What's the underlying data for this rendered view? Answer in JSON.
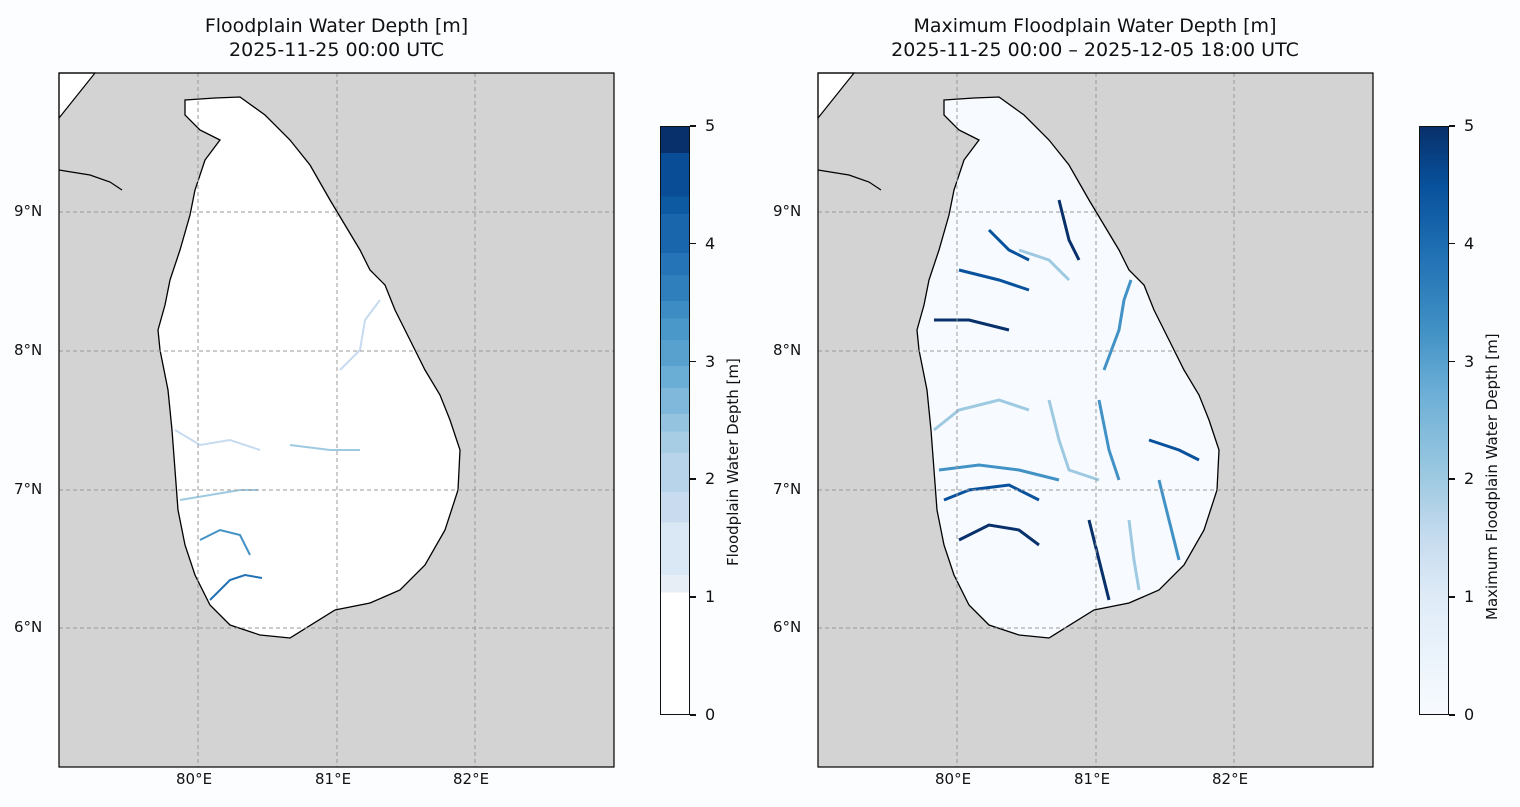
{
  "panels": [
    {
      "title_line1": "Floodplain Water Depth [m]",
      "title_line2": "2025-11-25 00:00 UTC",
      "colorbar_label": "Floodplain Water Depth [m]",
      "colorbar_ticks": [
        "0",
        "1",
        "2",
        "3",
        "4",
        "5"
      ],
      "x_ticks": [
        "80°E",
        "81°E",
        "82°E"
      ],
      "y_ticks": [
        "9°N",
        "8°N",
        "7°N",
        "6°N"
      ],
      "flood_intensity": "low"
    },
    {
      "title_line1": "Maximum Floodplain Water Depth [m]",
      "title_line2": "2025-11-25 00:00 – 2025-12-05 18:00 UTC",
      "colorbar_label": "Maximum Floodplain Water Depth [m]",
      "colorbar_ticks": [
        "0",
        "1",
        "2",
        "3",
        "4",
        "5"
      ],
      "x_ticks": [
        "80°E",
        "81°E",
        "82°E"
      ],
      "y_ticks": [
        "9°N",
        "8°N",
        "7°N",
        "6°N"
      ],
      "flood_intensity": "high"
    }
  ],
  "map_extent": {
    "lon": [
      79,
      83
    ],
    "lat": [
      5,
      10
    ]
  },
  "colorbar_range": [
    0,
    5
  ],
  "colors": {
    "ocean": "#d3d3d3",
    "land": "#ffffff",
    "grid": "#999999",
    "cmap_low": "#f7fbff",
    "cmap_high": "#08306b"
  }
}
